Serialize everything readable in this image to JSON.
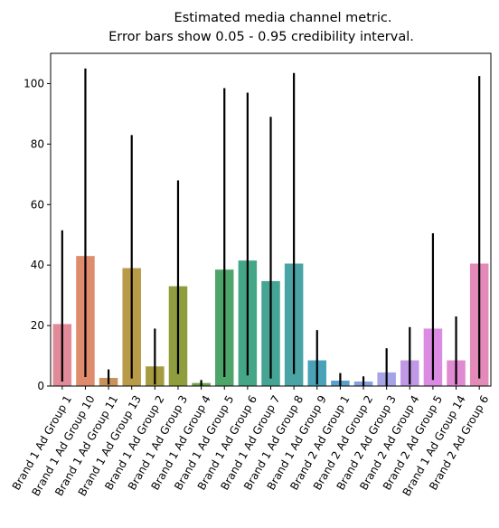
{
  "chart_data": {
    "type": "bar",
    "title_lines": [
      "Estimated media channel metric.",
      "Error bars show 0.05 - 0.95 credibility interval."
    ],
    "xlabel": "",
    "ylabel": "",
    "ylim": [
      0,
      110
    ],
    "yticks": [
      0,
      20,
      40,
      60,
      80,
      100
    ],
    "grid": false,
    "legend": "none",
    "categories": [
      "Brand 1 Ad Group 1",
      "Brand 1 Ad Group 10",
      "Brand 1 Ad Group 11",
      "Brand 1 Ad Group 13",
      "Brand 1 Ad Group 2",
      "Brand 1 Ad Group 3",
      "Brand 1 Ad Group 4",
      "Brand 1 Ad Group 5",
      "Brand 1 Ad Group 6",
      "Brand 1 Ad Group 7",
      "Brand 1 Ad Group 8",
      "Brand 1 Ad Group 9",
      "Brand 2 Ad Group 1",
      "Brand 2 Ad Group 2",
      "Brand 2 Ad Group 3",
      "Brand 2 Ad Group 4",
      "Brand 2 Ad Group 5",
      "Brand 1 Ad Group 14",
      "Brand 2 Ad Group 6"
    ],
    "values": [
      20.5,
      43,
      2.7,
      39,
      6.5,
      33,
      1.0,
      38.5,
      41.5,
      34.7,
      40.5,
      8.5,
      1.8,
      1.5,
      4.5,
      8.5,
      19,
      8.5,
      40.5
    ],
    "err_low": [
      1.5,
      3,
      0.5,
      2.5,
      0.5,
      4,
      0,
      3,
      3.5,
      2.5,
      4,
      0.5,
      0,
      0,
      0,
      0.5,
      2,
      0.5,
      2.5
    ],
    "err_high": [
      51.5,
      105,
      5.5,
      83,
      19,
      68,
      2,
      98.5,
      97,
      89,
      103.5,
      18.5,
      4.3,
      3.2,
      12.5,
      19.5,
      50.5,
      23,
      102.5
    ],
    "colors": [
      "#e18a9a",
      "#df8c6e",
      "#c9925a",
      "#b99a48",
      "#a59b40",
      "#8f9d3e",
      "#6ba34a",
      "#4ea56a",
      "#45a687",
      "#46a495",
      "#4aa3a5",
      "#4aa2b8",
      "#59a0ce",
      "#85a0dc",
      "#a6a4e6",
      "#c198e6",
      "#db8ce2",
      "#e08ad1",
      "#e48ab8"
    ],
    "errorbar_color": "#000000"
  }
}
